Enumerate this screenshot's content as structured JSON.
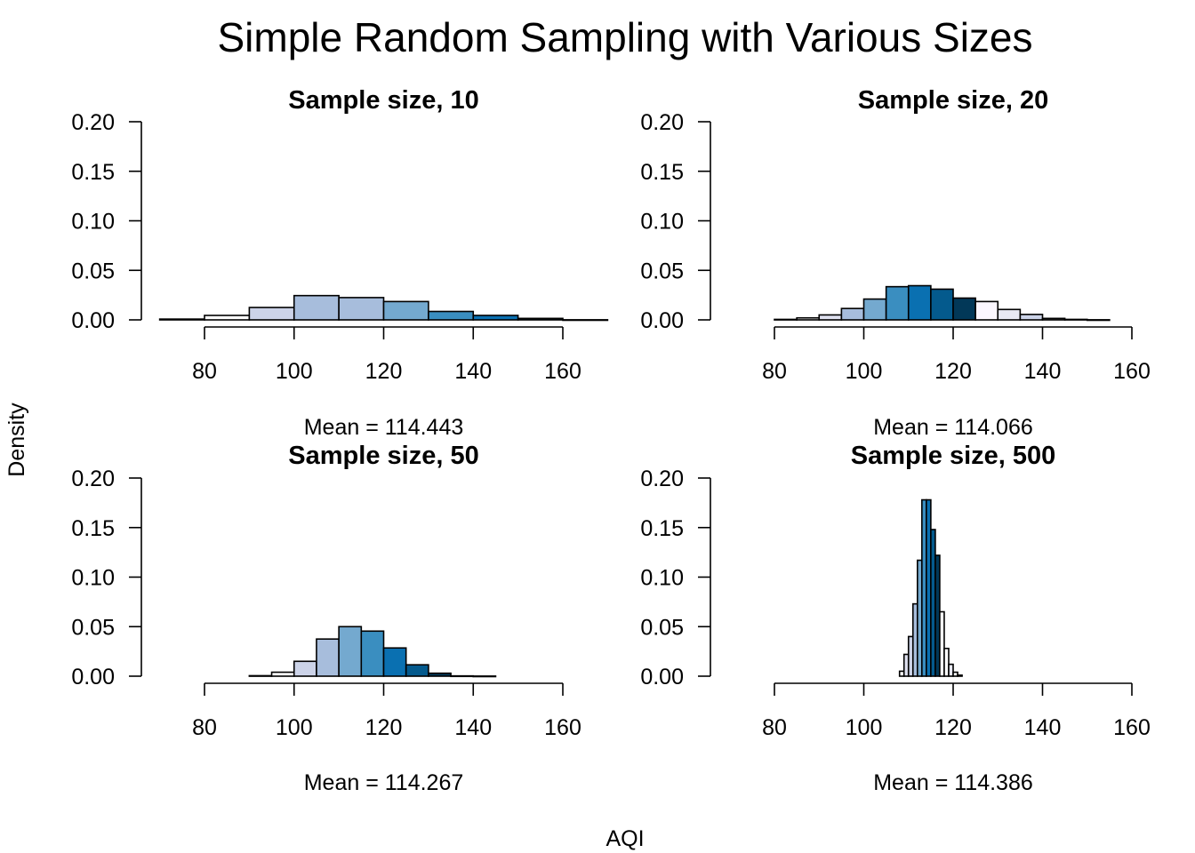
{
  "title": "Simple Random Sampling with Various Sizes",
  "xlabel": "AQI",
  "ylabel": "Density",
  "colors": {
    "palette": [
      "#ffffff",
      "#dfe1ef",
      "#ccd3e8",
      "#a7bddc",
      "#74a9cf",
      "#3a8ec0",
      "#0a70b1",
      "#045a8d",
      "#023858"
    ],
    "stroke": "#000000"
  },
  "chart_data": [
    {
      "type": "bar",
      "title": "Sample size, 10",
      "mean_label": "Mean = 114.443",
      "xlim": [
        80,
        160
      ],
      "ylim": [
        0,
        0.2
      ],
      "xticks": [
        80,
        100,
        120,
        140,
        160
      ],
      "yticks": [
        "0.00",
        "0.05",
        "0.10",
        "0.15",
        "0.20"
      ],
      "bin_width": 10,
      "bins": [
        {
          "x0": 70,
          "density": 0.0008,
          "color": "#ffffff"
        },
        {
          "x0": 80,
          "density": 0.0045,
          "color": "#ffffff"
        },
        {
          "x0": 90,
          "density": 0.0125,
          "color": "#ccd3e8"
        },
        {
          "x0": 100,
          "density": 0.0245,
          "color": "#a7bddc"
        },
        {
          "x0": 110,
          "density": 0.0225,
          "color": "#a7bddc"
        },
        {
          "x0": 120,
          "density": 0.0185,
          "color": "#74a9cf"
        },
        {
          "x0": 130,
          "density": 0.0085,
          "color": "#3a8ec0"
        },
        {
          "x0": 140,
          "density": 0.0045,
          "color": "#0a70b1"
        },
        {
          "x0": 150,
          "density": 0.0015,
          "color": "#045a8d"
        },
        {
          "x0": 160,
          "density": 0.0001,
          "color": "#023858"
        }
      ]
    },
    {
      "type": "bar",
      "title": "Sample size, 20",
      "mean_label": "Mean = 114.066",
      "xlim": [
        80,
        160
      ],
      "ylim": [
        0,
        0.2
      ],
      "xticks": [
        80,
        100,
        120,
        140,
        160
      ],
      "yticks": [
        "0.00",
        "0.05",
        "0.10",
        "0.15",
        "0.20"
      ],
      "bin_width": 5,
      "bins": [
        {
          "x0": 80,
          "density": 0.0005,
          "color": "#ffffff"
        },
        {
          "x0": 85,
          "density": 0.002,
          "color": "#ffffff"
        },
        {
          "x0": 90,
          "density": 0.005,
          "color": "#dfe1ef"
        },
        {
          "x0": 95,
          "density": 0.0115,
          "color": "#a7bddc"
        },
        {
          "x0": 100,
          "density": 0.021,
          "color": "#74a9cf"
        },
        {
          "x0": 105,
          "density": 0.0335,
          "color": "#3a8ec0"
        },
        {
          "x0": 110,
          "density": 0.0345,
          "color": "#0a70b1"
        },
        {
          "x0": 115,
          "density": 0.031,
          "color": "#045a8d"
        },
        {
          "x0": 120,
          "density": 0.022,
          "color": "#023858"
        },
        {
          "x0": 125,
          "density": 0.0185,
          "color": "#fbf7ff"
        },
        {
          "x0": 130,
          "density": 0.0105,
          "color": "#e8e9f3"
        },
        {
          "x0": 135,
          "density": 0.0055,
          "color": "#ccd3e8"
        },
        {
          "x0": 140,
          "density": 0.0015,
          "color": "#ffffff"
        },
        {
          "x0": 145,
          "density": 0.0005,
          "color": "#ffffff"
        },
        {
          "x0": 150,
          "density": 0.0001,
          "color": "#ffffff"
        }
      ]
    },
    {
      "type": "bar",
      "title": "Sample size, 50",
      "mean_label": "Mean = 114.267",
      "xlim": [
        80,
        160
      ],
      "ylim": [
        0,
        0.2
      ],
      "xticks": [
        80,
        100,
        120,
        140,
        160
      ],
      "yticks": [
        "0.00",
        "0.05",
        "0.10",
        "0.15",
        "0.20"
      ],
      "bin_width": 5,
      "bins": [
        {
          "x0": 90,
          "density": 0.0005,
          "color": "#ffffff"
        },
        {
          "x0": 95,
          "density": 0.004,
          "color": "#ffffff"
        },
        {
          "x0": 100,
          "density": 0.015,
          "color": "#ccd3e8"
        },
        {
          "x0": 105,
          "density": 0.0375,
          "color": "#a7bddc"
        },
        {
          "x0": 110,
          "density": 0.05,
          "color": "#74a9cf"
        },
        {
          "x0": 115,
          "density": 0.0455,
          "color": "#3a8ec0"
        },
        {
          "x0": 120,
          "density": 0.0285,
          "color": "#0a70b1"
        },
        {
          "x0": 125,
          "density": 0.0115,
          "color": "#045a8d"
        },
        {
          "x0": 130,
          "density": 0.003,
          "color": "#023858"
        },
        {
          "x0": 135,
          "density": 0.0003,
          "color": "#ffffff"
        },
        {
          "x0": 140,
          "density": 0.0001,
          "color": "#ffffff"
        }
      ]
    },
    {
      "type": "bar",
      "title": "Sample size, 500",
      "mean_label": "Mean = 114.386",
      "xlim": [
        80,
        160
      ],
      "ylim": [
        0,
        0.2
      ],
      "xticks": [
        80,
        100,
        120,
        140,
        160
      ],
      "yticks": [
        "0.00",
        "0.05",
        "0.10",
        "0.15",
        "0.20"
      ],
      "bin_width": 1,
      "bins": [
        {
          "x0": 108,
          "density": 0.005,
          "color": "#ffffff"
        },
        {
          "x0": 109,
          "density": 0.022,
          "color": "#dfe1ef"
        },
        {
          "x0": 110,
          "density": 0.04,
          "color": "#ccd3e8"
        },
        {
          "x0": 111,
          "density": 0.073,
          "color": "#a7bddc"
        },
        {
          "x0": 112,
          "density": 0.117,
          "color": "#74a9cf"
        },
        {
          "x0": 113,
          "density": 0.178,
          "color": "#3a8ec0"
        },
        {
          "x0": 114,
          "density": 0.178,
          "color": "#0a70b1"
        },
        {
          "x0": 115,
          "density": 0.148,
          "color": "#045a8d"
        },
        {
          "x0": 116,
          "density": 0.122,
          "color": "#023858"
        },
        {
          "x0": 117,
          "density": 0.065,
          "color": "#ffffff"
        },
        {
          "x0": 118,
          "density": 0.028,
          "color": "#ffffff"
        },
        {
          "x0": 119,
          "density": 0.012,
          "color": "#e8e9f3"
        },
        {
          "x0": 120,
          "density": 0.004,
          "color": "#ffffff"
        },
        {
          "x0": 121,
          "density": 0.001,
          "color": "#ffffff"
        }
      ]
    }
  ]
}
